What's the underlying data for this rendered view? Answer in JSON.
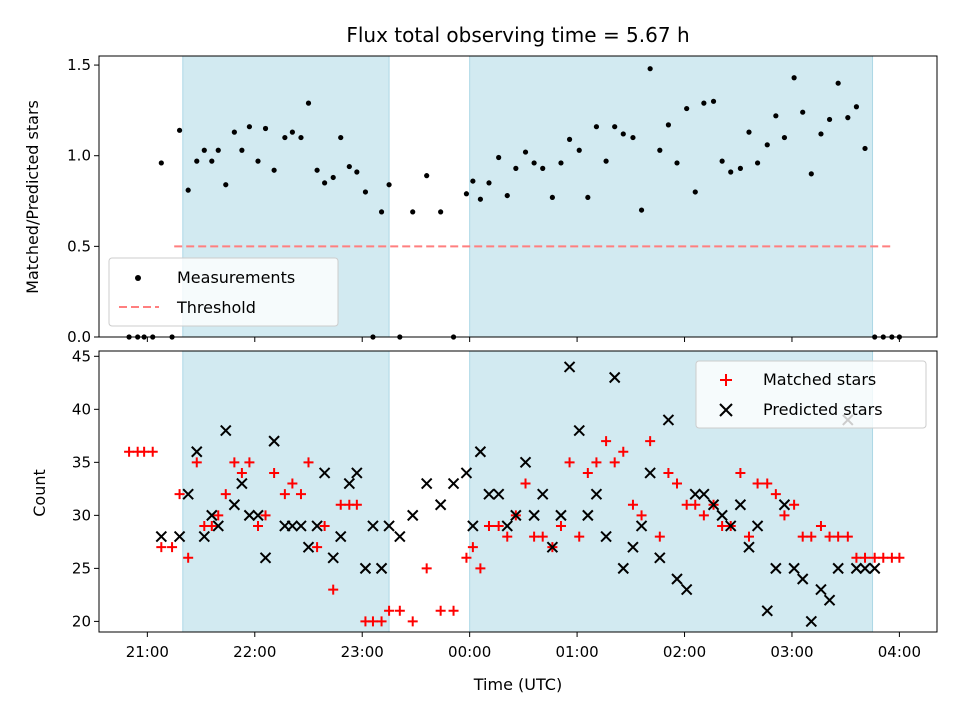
{
  "title": "Flux total observing time = 5.67 h",
  "colors": {
    "shade": "#add8e6",
    "threshold": "#ff7f7f",
    "matched": "#ff0000",
    "predicted": "#000000",
    "measurement": "#000000"
  },
  "chart_data": [
    {
      "type": "scatter",
      "panel": "top",
      "ylabel": "Matched/Predicted stars",
      "ylim": [
        0,
        1.55
      ],
      "yticks": [
        "0.0",
        "0.5",
        "1.0",
        "1.5"
      ],
      "ytick_values": [
        0,
        0.5,
        1.0,
        1.5
      ],
      "xlim_hours": [
        20.55,
        28.35
      ],
      "shaded_intervals_hours": [
        [
          21.33,
          23.25
        ],
        [
          24.0,
          27.75
        ]
      ],
      "threshold": {
        "name": "Threshold",
        "value": 0.5,
        "x_hours": [
          21.25,
          27.95
        ]
      },
      "legend": {
        "position": "lower-left",
        "entries": [
          "Measurements",
          "Threshold"
        ]
      },
      "series": [
        {
          "name": "Measurements",
          "x_hours": [
            20.83,
            20.91,
            20.97,
            21.05,
            21.13,
            21.23,
            21.3,
            21.38,
            21.46,
            21.53,
            21.6,
            21.66,
            21.73,
            21.81,
            21.88,
            21.95,
            22.03,
            22.1,
            22.18,
            22.28,
            22.35,
            22.43,
            22.5,
            22.58,
            22.65,
            22.73,
            22.8,
            22.88,
            22.95,
            23.03,
            23.1,
            23.18,
            23.25,
            23.35,
            23.47,
            23.6,
            23.73,
            23.85,
            23.97,
            24.03,
            24.1,
            24.18,
            24.27,
            24.35,
            24.43,
            24.52,
            24.6,
            24.68,
            24.77,
            24.85,
            24.93,
            25.02,
            25.1,
            25.18,
            25.27,
            25.35,
            25.43,
            25.52,
            25.6,
            25.68,
            25.77,
            25.85,
            25.93,
            26.02,
            26.1,
            26.18,
            26.27,
            26.35,
            26.43,
            26.52,
            26.6,
            26.68,
            26.77,
            26.85,
            26.93,
            27.02,
            27.1,
            27.18,
            27.27,
            27.35,
            27.43,
            27.52,
            27.6,
            27.68,
            27.77,
            27.85,
            27.93,
            28.0
          ],
          "y": [
            0.0,
            0.0,
            0.0,
            0.0,
            0.96,
            0.0,
            1.14,
            0.81,
            0.97,
            1.03,
            0.97,
            1.03,
            0.84,
            1.13,
            1.03,
            1.16,
            0.97,
            1.15,
            0.92,
            1.1,
            1.13,
            1.1,
            1.29,
            0.92,
            0.85,
            0.88,
            1.1,
            0.94,
            0.91,
            0.8,
            0.0,
            0.69,
            0.84,
            0.0,
            0.69,
            0.89,
            0.69,
            0.0,
            0.79,
            0.86,
            0.76,
            0.85,
            0.99,
            0.78,
            0.93,
            1.02,
            0.96,
            0.93,
            0.77,
            0.96,
            1.09,
            1.03,
            0.77,
            1.16,
            0.97,
            1.16,
            1.12,
            1.1,
            0.7,
            1.48,
            1.03,
            1.17,
            0.96,
            1.26,
            0.8,
            1.29,
            1.3,
            0.97,
            0.91,
            0.93,
            1.13,
            0.96,
            1.06,
            1.22,
            1.1,
            1.43,
            1.24,
            0.9,
            1.12,
            1.2,
            1.4,
            1.21,
            1.27,
            1.04,
            0.0,
            0.0,
            0.0,
            0.0
          ]
        }
      ]
    },
    {
      "type": "scatter",
      "panel": "bottom",
      "xlabel": "Time (UTC)",
      "ylabel": "Count",
      "ylim": [
        19,
        45.5
      ],
      "yticks": [
        "20",
        "25",
        "30",
        "35",
        "40",
        "45"
      ],
      "ytick_values": [
        20,
        25,
        30,
        35,
        40,
        45
      ],
      "xticks": [
        "21:00",
        "22:00",
        "23:00",
        "00:00",
        "01:00",
        "02:00",
        "03:00",
        "04:00"
      ],
      "xtick_hours": [
        21,
        22,
        23,
        24,
        25,
        26,
        27,
        28
      ],
      "legend": {
        "position": "top-right",
        "entries": [
          "Matched stars",
          "Predicted stars"
        ]
      },
      "series": [
        {
          "name": "Matched stars",
          "marker": "+",
          "x_hours": [
            20.83,
            20.91,
            20.97,
            21.05,
            21.13,
            21.23,
            21.3,
            21.38,
            21.46,
            21.53,
            21.6,
            21.66,
            21.73,
            21.81,
            21.88,
            21.95,
            22.03,
            22.1,
            22.18,
            22.28,
            22.35,
            22.43,
            22.5,
            22.58,
            22.65,
            22.73,
            22.8,
            22.88,
            22.95,
            23.03,
            23.1,
            23.18,
            23.25,
            23.35,
            23.47,
            23.6,
            23.73,
            23.85,
            23.97,
            24.03,
            24.1,
            24.18,
            24.27,
            24.35,
            24.43,
            24.52,
            24.6,
            24.68,
            24.77,
            24.85,
            24.93,
            25.02,
            25.1,
            25.18,
            25.27,
            25.35,
            25.43,
            25.52,
            25.6,
            25.68,
            25.77,
            25.85,
            25.93,
            26.02,
            26.1,
            26.18,
            26.27,
            26.35,
            26.43,
            26.52,
            26.6,
            26.68,
            26.77,
            26.85,
            26.93,
            27.02,
            27.1,
            27.18,
            27.27,
            27.35,
            27.43,
            27.52,
            27.6,
            27.68,
            27.77,
            27.85,
            27.93,
            28.0
          ],
          "y": [
            36,
            36,
            36,
            36,
            27,
            27,
            32,
            26,
            35,
            29,
            29,
            30,
            32,
            35,
            34,
            35,
            29,
            30,
            34,
            32,
            33,
            32,
            35,
            27,
            29,
            23,
            31,
            31,
            31,
            20,
            20,
            20,
            21,
            21,
            20,
            25,
            21,
            21,
            26,
            27,
            25,
            29,
            29,
            28,
            30,
            33,
            28,
            28,
            27,
            29,
            35,
            28,
            34,
            35,
            37,
            35,
            36,
            31,
            30,
            37,
            28,
            34,
            33,
            31,
            31,
            30,
            31,
            29,
            29,
            34,
            28,
            33,
            33,
            32,
            30,
            31,
            28,
            28,
            29,
            28,
            28,
            28,
            26,
            26,
            26,
            26,
            26,
            26
          ]
        },
        {
          "name": "Predicted stars",
          "marker": "x",
          "x_hours": [
            21.13,
            21.3,
            21.38,
            21.46,
            21.53,
            21.6,
            21.66,
            21.73,
            21.81,
            21.88,
            21.95,
            22.03,
            22.1,
            22.18,
            22.28,
            22.35,
            22.43,
            22.5,
            22.58,
            22.65,
            22.73,
            22.8,
            22.88,
            22.95,
            23.03,
            23.1,
            23.18,
            23.25,
            23.35,
            23.47,
            23.6,
            23.73,
            23.85,
            23.97,
            24.03,
            24.1,
            24.18,
            24.27,
            24.35,
            24.43,
            24.52,
            24.6,
            24.68,
            24.77,
            24.85,
            24.93,
            25.02,
            25.1,
            25.18,
            25.27,
            25.35,
            25.43,
            25.52,
            25.6,
            25.68,
            25.77,
            25.85,
            25.93,
            26.02,
            26.1,
            26.18,
            26.27,
            26.35,
            26.43,
            26.52,
            26.6,
            26.68,
            26.77,
            26.85,
            26.93,
            27.02,
            27.1,
            27.18,
            27.27,
            27.35,
            27.43,
            27.52,
            27.6,
            27.68,
            27.77
          ],
          "y": [
            28,
            28,
            32,
            36,
            28,
            30,
            29,
            38,
            31,
            33,
            30,
            30,
            26,
            37,
            29,
            29,
            29,
            27,
            29,
            34,
            26,
            28,
            33,
            34,
            25,
            29,
            25,
            29,
            28,
            30,
            33,
            31,
            33,
            34,
            29,
            36,
            32,
            32,
            29,
            30,
            35,
            30,
            32,
            27,
            30,
            44,
            38,
            30,
            32,
            28,
            43,
            25,
            27,
            29,
            34,
            26,
            39,
            24,
            23,
            32,
            32,
            31,
            30,
            29,
            31,
            27,
            29,
            21,
            25,
            31,
            25,
            24,
            20,
            23,
            22,
            25,
            39,
            25,
            25,
            25
          ]
        }
      ]
    }
  ]
}
